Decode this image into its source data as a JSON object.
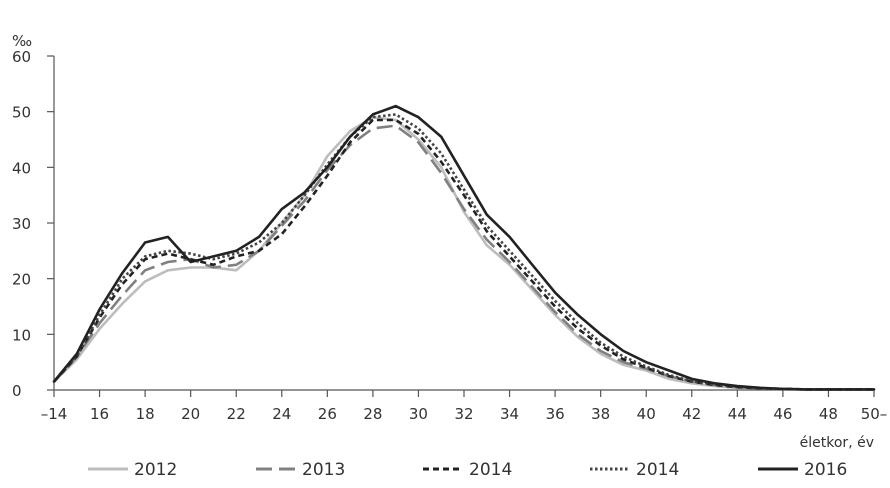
{
  "chart_data": {
    "type": "line",
    "title": "",
    "unit_label": "‰",
    "xlabel": "életkor, év",
    "ylabel": "",
    "ylim": [
      0,
      60
    ],
    "yticks": [
      0,
      10,
      20,
      30,
      40,
      50,
      60
    ],
    "xlim": [
      14,
      50
    ],
    "xticks": [
      14,
      16,
      18,
      20,
      22,
      24,
      26,
      28,
      30,
      32,
      34,
      36,
      38,
      40,
      42,
      44,
      46,
      48,
      50
    ],
    "xtick_labels": [
      "–14",
      "16",
      "18",
      "20",
      "22",
      "24",
      "26",
      "28",
      "30",
      "32",
      "34",
      "36",
      "38",
      "40",
      "42",
      "44",
      "46",
      "48",
      "50–"
    ],
    "grid": false,
    "legend_position": "bottom",
    "x": [
      14,
      15,
      16,
      17,
      18,
      19,
      20,
      21,
      22,
      23,
      24,
      25,
      26,
      27,
      28,
      29,
      30,
      31,
      32,
      33,
      34,
      35,
      36,
      37,
      38,
      39,
      40,
      41,
      42,
      43,
      44,
      45,
      46,
      47,
      48,
      49,
      50
    ],
    "series": [
      {
        "name": "2012",
        "color": "#bdbdbd",
        "dash": "solid",
        "values": [
          1.5,
          5.5,
          11.0,
          15.5,
          19.5,
          21.5,
          22.0,
          22.0,
          21.5,
          25.0,
          30.0,
          35.0,
          42.0,
          46.5,
          49.0,
          48.5,
          45.0,
          40.0,
          32.0,
          26.0,
          22.5,
          18.0,
          13.5,
          9.5,
          6.5,
          4.5,
          3.5,
          2.0,
          1.2,
          0.7,
          0.4,
          0.3,
          0.2,
          0.1,
          0.1,
          0.1,
          0.1
        ]
      },
      {
        "name": "2013",
        "color": "#808080",
        "dash": "longdash",
        "values": [
          1.5,
          6.0,
          12.0,
          17.0,
          21.5,
          23.0,
          23.5,
          22.0,
          22.5,
          25.0,
          29.5,
          34.0,
          39.5,
          44.0,
          47.0,
          47.5,
          44.5,
          39.0,
          32.5,
          27.0,
          23.0,
          18.5,
          14.0,
          10.0,
          7.0,
          5.0,
          3.8,
          2.5,
          1.5,
          0.9,
          0.5,
          0.3,
          0.2,
          0.1,
          0.1,
          0.1,
          0.1
        ]
      },
      {
        "name": "2014",
        "color": "#222222",
        "dash": "shortdash",
        "values": [
          1.5,
          6.0,
          13.0,
          19.0,
          23.5,
          24.5,
          23.5,
          22.5,
          24.0,
          25.0,
          28.0,
          33.0,
          38.5,
          44.5,
          48.5,
          48.5,
          46.0,
          41.0,
          35.0,
          28.5,
          24.0,
          19.5,
          15.0,
          11.0,
          8.0,
          5.5,
          4.0,
          2.5,
          1.5,
          0.9,
          0.5,
          0.3,
          0.2,
          0.1,
          0.1,
          0.1,
          0.1
        ]
      },
      {
        "name": "2014",
        "color": "#444444",
        "dash": "dotted",
        "values": [
          1.5,
          6.0,
          13.5,
          20.0,
          24.0,
          25.0,
          24.5,
          23.5,
          24.5,
          26.5,
          30.0,
          35.0,
          40.5,
          45.5,
          49.0,
          49.5,
          47.0,
          42.5,
          36.0,
          29.5,
          25.0,
          20.5,
          16.0,
          12.0,
          8.5,
          6.0,
          4.2,
          2.7,
          1.6,
          1.0,
          0.6,
          0.3,
          0.2,
          0.1,
          0.1,
          0.1,
          0.1
        ]
      },
      {
        "name": "2016",
        "color": "#222222",
        "dash": "solid",
        "values": [
          1.5,
          6.5,
          14.5,
          21.0,
          26.5,
          27.5,
          23.0,
          24.0,
          25.0,
          27.5,
          32.5,
          35.5,
          40.0,
          45.5,
          49.5,
          51.0,
          49.0,
          45.5,
          38.5,
          31.5,
          27.5,
          22.5,
          17.5,
          13.5,
          10.0,
          7.0,
          5.0,
          3.5,
          2.0,
          1.2,
          0.7,
          0.4,
          0.2,
          0.1,
          0.1,
          0.1,
          0.1
        ]
      }
    ]
  }
}
